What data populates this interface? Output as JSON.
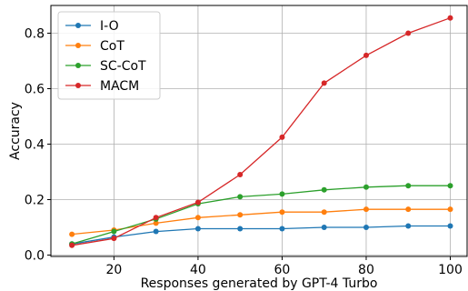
{
  "chart_data": {
    "type": "line",
    "title": "",
    "xlabel": "Responses generated by GPT-4 Turbo",
    "ylabel": "Accuracy",
    "xlim": [
      5,
      104
    ],
    "ylim": [
      -0.005,
      0.9
    ],
    "xticks": [
      20,
      40,
      60,
      80,
      100
    ],
    "yticks": [
      0.0,
      0.2,
      0.4,
      0.6,
      0.8
    ],
    "xtick_labels": [
      "20",
      "40",
      "60",
      "80",
      "100"
    ],
    "ytick_labels": [
      "0.0",
      "0.2",
      "0.4",
      "0.6",
      "0.8"
    ],
    "grid": true,
    "legend_position": "top-left",
    "x": [
      10,
      20,
      30,
      40,
      50,
      60,
      70,
      80,
      90,
      100
    ],
    "series": [
      {
        "name": "I-O",
        "color": "#1f77b4",
        "values": [
          0.04,
          0.065,
          0.085,
          0.095,
          0.095,
          0.095,
          0.1,
          0.1,
          0.105,
          0.105
        ]
      },
      {
        "name": "CoT",
        "color": "#ff7f0e",
        "values": [
          0.075,
          0.09,
          0.115,
          0.135,
          0.145,
          0.155,
          0.155,
          0.165,
          0.165,
          0.165
        ]
      },
      {
        "name": "SC-CoT",
        "color": "#2ca02c",
        "values": [
          0.04,
          0.085,
          0.13,
          0.185,
          0.21,
          0.22,
          0.235,
          0.245,
          0.25,
          0.25
        ]
      },
      {
        "name": "MACM",
        "color": "#d62728",
        "values": [
          0.035,
          0.06,
          0.135,
          0.19,
          0.29,
          0.425,
          0.62,
          0.72,
          0.8,
          0.855
        ]
      }
    ]
  }
}
